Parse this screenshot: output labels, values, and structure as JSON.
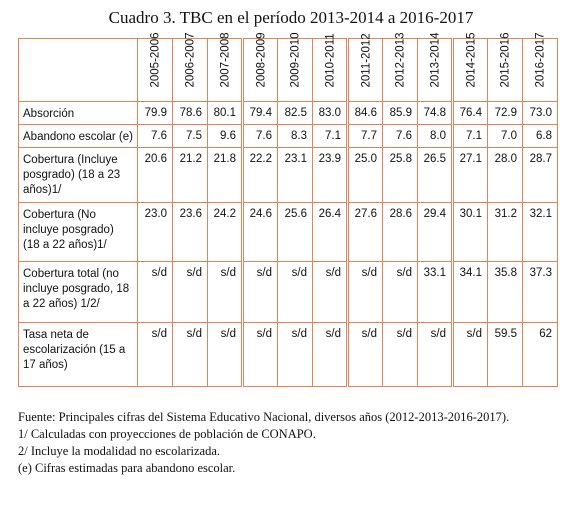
{
  "title": "Cuadro 3. TBC en el período 2013-2014 a 2016-2017",
  "table": {
    "columns": [
      "2005-2006",
      "2006-2007",
      "2007-2008",
      "2008-2009",
      "2009-2010",
      "2010-2011",
      "2011-2012",
      "2012-2013",
      "2013-2014",
      "2014-2015",
      "2015-2016",
      "2016-2017"
    ],
    "rows": [
      {
        "label": "Absorción",
        "cells": [
          "79.9",
          "78.6",
          "80.1",
          "79.4",
          "82.5",
          "83.0",
          "84.6",
          "85.9",
          "74.8",
          "76.4",
          "72.9",
          "73.0"
        ]
      },
      {
        "label": "Abandono escolar (e)",
        "cells": [
          "7.6",
          "7.5",
          "9.6",
          "7.6",
          "8.3",
          "7.1",
          "7.7",
          "7.6",
          "8.0",
          "7.1",
          "7.0",
          "6.8"
        ]
      },
      {
        "label": "Cobertura (Incluye posgrado) (18 a 23 años)1/",
        "cells": [
          "20.6",
          "21.2",
          "21.8",
          "22.2",
          "23.1",
          "23.9",
          "25.0",
          "25.8",
          "26.5",
          "27.1",
          "28.0",
          "28.7"
        ]
      },
      {
        "label": "Cobertura (No incluye posgrado) (18 a 22 años)1/",
        "cells": [
          "23.0",
          "23.6",
          "24.2",
          "24.6",
          "25.6",
          "26.4",
          "27.6",
          "28.6",
          "29.4",
          "30.1",
          "31.2",
          "32.1"
        ]
      },
      {
        "label": "Cobertura total (no incluye posgrado, 18 a 22 años) 1/2/",
        "cells": [
          "s/d",
          "s/d",
          "s/d",
          "s/d",
          "s/d",
          "s/d",
          "s/d",
          "s/d",
          "33.1",
          "34.1",
          "35.8",
          "37.3"
        ]
      },
      {
        "label": "Tasa neta de escolarización (15 a 17 años)",
        "cells": [
          "s/d",
          "s/d",
          "s/d",
          "s/d",
          "s/d",
          "s/d",
          "s/d",
          "s/d",
          "s/d",
          "s/d",
          "59.5",
          "62"
        ]
      }
    ]
  },
  "notes": [
    "Fuente: Principales cifras del Sistema Educativo Nacional, diversos años (2012-2013-2016-2017).",
    "1/ Calculadas con proyecciones de población de CONAPO.",
    "2/ Incluye la modalidad no escolarizada.",
    "(e) Cifras estimadas para abandono escolar."
  ]
}
